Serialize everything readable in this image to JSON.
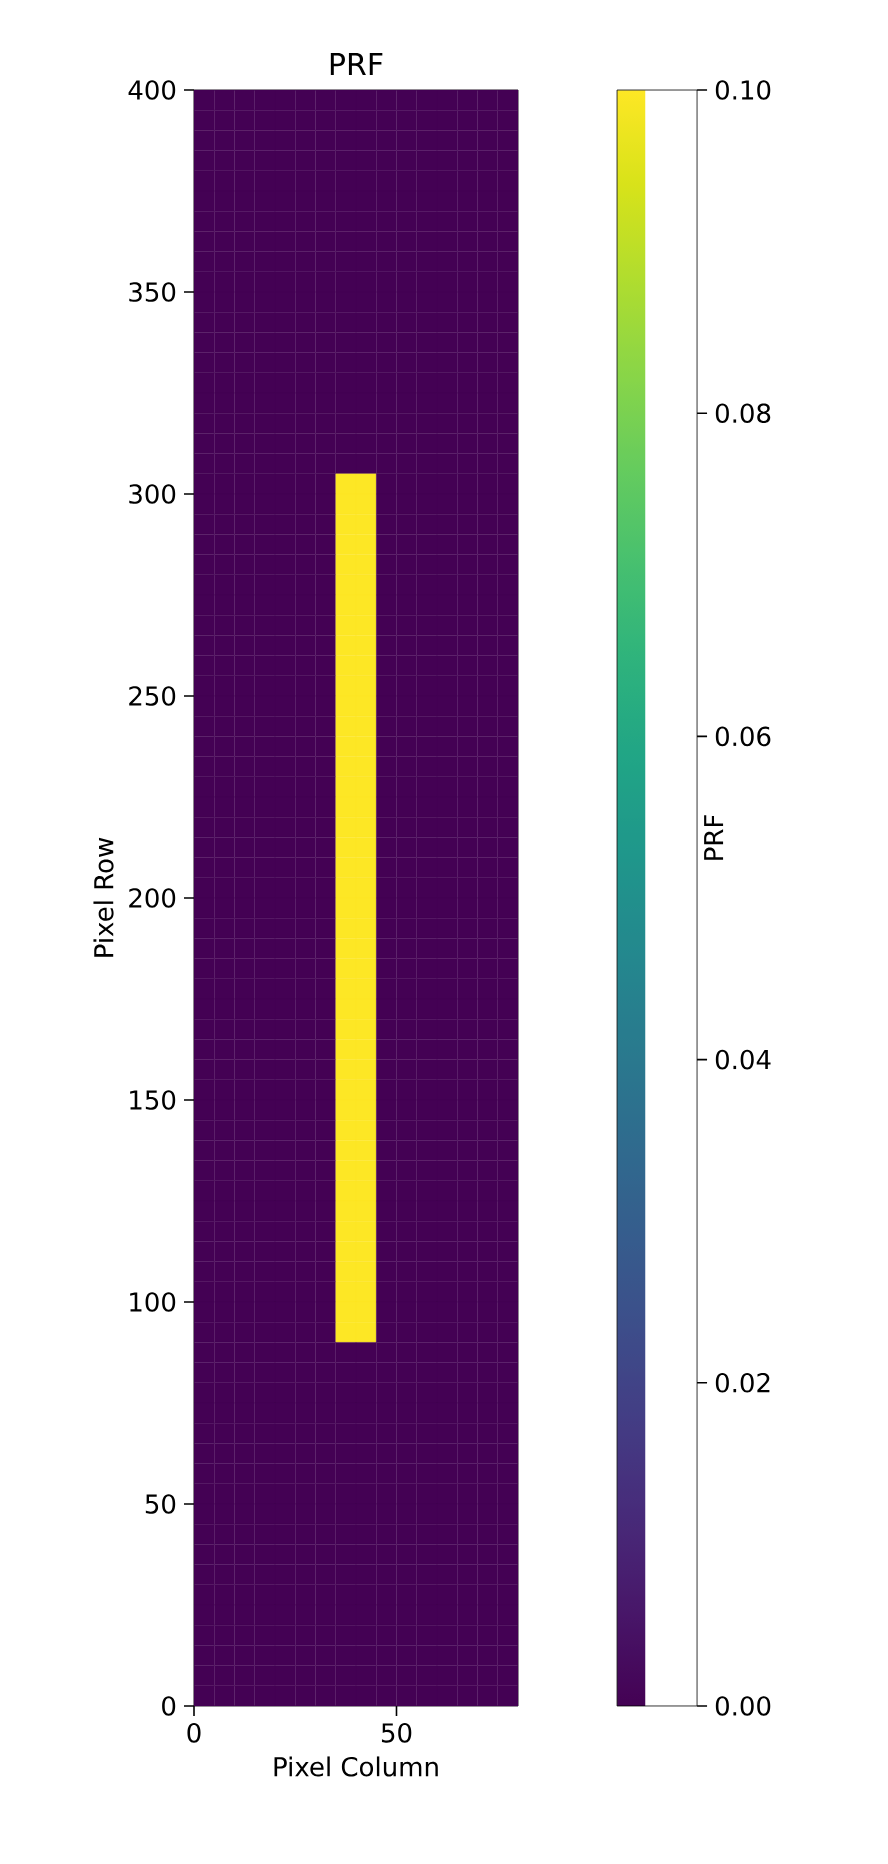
{
  "chart_data": {
    "type": "heatmap",
    "title": "PRF",
    "xlabel": "Pixel Column",
    "ylabel": "Pixel Row",
    "clabel": "PRF",
    "xlim": [
      0,
      80
    ],
    "ylim": [
      0,
      400
    ],
    "xticks": [
      0,
      50
    ],
    "yticks": [
      0,
      50,
      100,
      150,
      200,
      250,
      300,
      350,
      400
    ],
    "clim": [
      0,
      0.1
    ],
    "cticks": [
      {
        "value": 0,
        "label": "0.00"
      },
      {
        "value": 0.02,
        "label": "0.02"
      },
      {
        "value": 0.04,
        "label": "0.04"
      },
      {
        "value": 0.06,
        "label": "0.06"
      },
      {
        "value": 0.08,
        "label": "0.08"
      },
      {
        "value": 0.1,
        "label": "0.10"
      }
    ],
    "x": [
      2.5,
      7.5,
      12.5,
      17.5,
      22.5,
      27.5,
      32.5,
      37.5,
      42.5,
      47.5,
      52.5,
      57.5,
      62.5,
      67.5,
      72.5,
      77.5
    ],
    "y": [
      397.5,
      392.5,
      387.5,
      382.5,
      377.5,
      372.5,
      367.5,
      362.5,
      357.5,
      352.5,
      347.5,
      342.5,
      337.5,
      332.5,
      327.5,
      322.5,
      317.5,
      312.5,
      307.5,
      302.5,
      297.5,
      292.5,
      287.5,
      282.5,
      277.5,
      272.5,
      267.5,
      262.5,
      257.5,
      252.5,
      247.5,
      242.5,
      237.5,
      232.5,
      227.5,
      222.5,
      217.5,
      212.5,
      207.5,
      202.5,
      197.5,
      192.5,
      187.5,
      182.5,
      177.5,
      172.5,
      167.5,
      162.5,
      157.5,
      152.5,
      147.5,
      142.5,
      137.5,
      132.5,
      127.5,
      122.5,
      117.5,
      112.5,
      107.5,
      102.5,
      97.5,
      92.5,
      87.5,
      82.5,
      77.5,
      72.5,
      67.5,
      62.5,
      57.5,
      52.5,
      47.5,
      42.5,
      37.5,
      32.5,
      27.5,
      22.5,
      17.5,
      12.5,
      7.5,
      2.5
    ],
    "cells": [
      [
        0,
        0,
        0,
        0,
        0,
        0,
        0,
        0,
        0,
        0,
        0,
        0,
        0,
        0,
        0,
        0
      ],
      [
        0,
        0,
        0,
        0,
        0,
        0,
        0,
        0,
        0,
        0,
        0,
        0,
        0,
        0,
        0,
        0
      ],
      [
        0,
        0,
        0,
        0,
        0,
        0,
        0,
        0,
        0,
        0,
        0,
        0,
        0,
        0,
        0,
        0
      ],
      [
        0,
        0,
        0,
        0,
        0,
        0,
        0,
        0,
        0,
        0,
        0,
        0,
        0,
        0,
        0,
        0
      ],
      [
        0,
        0,
        0,
        0,
        0,
        0,
        0,
        0,
        0,
        0,
        0,
        0,
        0,
        0,
        0,
        0
      ],
      [
        0,
        0,
        0,
        0,
        0,
        0,
        0,
        0,
        0,
        0,
        0,
        0,
        0,
        0,
        0,
        0
      ],
      [
        0,
        0,
        0,
        0,
        0,
        0,
        0,
        0,
        0,
        0,
        0,
        0,
        0,
        0,
        0,
        0
      ],
      [
        0,
        0,
        0,
        0,
        0,
        0,
        0,
        0,
        0,
        0,
        0,
        0,
        0,
        0,
        0,
        0
      ],
      [
        0,
        0,
        0,
        0,
        0,
        0,
        0,
        0,
        0,
        0,
        0,
        0,
        0,
        0,
        0,
        0
      ],
      [
        0,
        0,
        0,
        0,
        0,
        0,
        0,
        0,
        0,
        0,
        0,
        0,
        0,
        0,
        0,
        0
      ],
      [
        0,
        0,
        0,
        0,
        0,
        0,
        0,
        0,
        0,
        0,
        0,
        0,
        0,
        0,
        0,
        0
      ],
      [
        0,
        0,
        0,
        0,
        0,
        0,
        0,
        0,
        0,
        0,
        0,
        0,
        0,
        0,
        0,
        0
      ],
      [
        0,
        0,
        0,
        0,
        0,
        0,
        0,
        0,
        0,
        0,
        0,
        0,
        0,
        0,
        0,
        0
      ],
      [
        0,
        0,
        0,
        0,
        0,
        0,
        0,
        0,
        0,
        0,
        0,
        0,
        0,
        0,
        0,
        0
      ],
      [
        0,
        0,
        0,
        0,
        0,
        0,
        0,
        0,
        0,
        0,
        0,
        0,
        0,
        0,
        0,
        0
      ],
      [
        0,
        0,
        0,
        0,
        0,
        0,
        0,
        0,
        0,
        0,
        0,
        0,
        0,
        0,
        0,
        0
      ],
      [
        0,
        0,
        0,
        0,
        0,
        0,
        0,
        0,
        0,
        0,
        0,
        0,
        0,
        0,
        0,
        0
      ],
      [
        0,
        0,
        0,
        0,
        0,
        0,
        0,
        0,
        0,
        0,
        0,
        0,
        0,
        0,
        0,
        0
      ],
      [
        0,
        0,
        0,
        0,
        0,
        0,
        0,
        0,
        0,
        0,
        0,
        0,
        0,
        0,
        0,
        0
      ],
      [
        0,
        0,
        0,
        0,
        0,
        0,
        0,
        0.1,
        0.1,
        0,
        0,
        0,
        0,
        0,
        0,
        0
      ],
      [
        0,
        0,
        0,
        0,
        0,
        0,
        0,
        0.1,
        0.1,
        0,
        0,
        0,
        0,
        0,
        0,
        0
      ],
      [
        0,
        0,
        0,
        0,
        0,
        0,
        0,
        0.1,
        0.1,
        0,
        0,
        0,
        0,
        0,
        0,
        0
      ],
      [
        0,
        0,
        0,
        0,
        0,
        0,
        0,
        0.1,
        0.1,
        0,
        0,
        0,
        0,
        0,
        0,
        0
      ],
      [
        0,
        0,
        0,
        0,
        0,
        0,
        0,
        0.1,
        0.1,
        0,
        0,
        0,
        0,
        0,
        0,
        0
      ],
      [
        0,
        0,
        0,
        0,
        0,
        0,
        0,
        0.1,
        0.1,
        0,
        0,
        0,
        0,
        0,
        0,
        0
      ],
      [
        0,
        0,
        0,
        0,
        0,
        0,
        0,
        0.1,
        0.1,
        0,
        0,
        0,
        0,
        0,
        0,
        0
      ],
      [
        0,
        0,
        0,
        0,
        0,
        0,
        0,
        0.1,
        0.1,
        0,
        0,
        0,
        0,
        0,
        0,
        0
      ],
      [
        0,
        0,
        0,
        0,
        0,
        0,
        0,
        0.1,
        0.1,
        0,
        0,
        0,
        0,
        0,
        0,
        0
      ],
      [
        0,
        0,
        0,
        0,
        0,
        0,
        0,
        0.1,
        0.1,
        0,
        0,
        0,
        0,
        0,
        0,
        0
      ],
      [
        0,
        0,
        0,
        0,
        0,
        0,
        0,
        0.1,
        0.1,
        0,
        0,
        0,
        0,
        0,
        0,
        0
      ],
      [
        0,
        0,
        0,
        0,
        0,
        0,
        0,
        0.1,
        0.1,
        0,
        0,
        0,
        0,
        0,
        0,
        0
      ],
      [
        0,
        0,
        0,
        0,
        0,
        0,
        0,
        0.1,
        0.1,
        0,
        0,
        0,
        0,
        0,
        0,
        0
      ],
      [
        0,
        0,
        0,
        0,
        0,
        0,
        0,
        0.1,
        0.1,
        0,
        0,
        0,
        0,
        0,
        0,
        0
      ],
      [
        0,
        0,
        0,
        0,
        0,
        0,
        0,
        0.1,
        0.1,
        0,
        0,
        0,
        0,
        0,
        0,
        0
      ],
      [
        0,
        0,
        0,
        0,
        0,
        0,
        0,
        0.1,
        0.1,
        0,
        0,
        0,
        0,
        0,
        0,
        0
      ],
      [
        0,
        0,
        0,
        0,
        0,
        0,
        0,
        0.1,
        0.1,
        0,
        0,
        0,
        0,
        0,
        0,
        0
      ],
      [
        0,
        0,
        0,
        0,
        0,
        0,
        0,
        0.1,
        0.1,
        0,
        0,
        0,
        0,
        0,
        0,
        0
      ],
      [
        0,
        0,
        0,
        0,
        0,
        0,
        0,
        0.1,
        0.1,
        0,
        0,
        0,
        0,
        0,
        0,
        0
      ],
      [
        0,
        0,
        0,
        0,
        0,
        0,
        0,
        0.1,
        0.1,
        0,
        0,
        0,
        0,
        0,
        0,
        0
      ],
      [
        0,
        0,
        0,
        0,
        0,
        0,
        0,
        0.1,
        0.1,
        0,
        0,
        0,
        0,
        0,
        0,
        0
      ],
      [
        0,
        0,
        0,
        0,
        0,
        0,
        0,
        0.1,
        0.1,
        0,
        0,
        0,
        0,
        0,
        0,
        0
      ],
      [
        0,
        0,
        0,
        0,
        0,
        0,
        0,
        0.1,
        0.1,
        0,
        0,
        0,
        0,
        0,
        0,
        0
      ],
      [
        0,
        0,
        0,
        0,
        0,
        0,
        0,
        0.1,
        0.1,
        0,
        0,
        0,
        0,
        0,
        0,
        0
      ],
      [
        0,
        0,
        0,
        0,
        0,
        0,
        0,
        0.1,
        0.1,
        0,
        0,
        0,
        0,
        0,
        0,
        0
      ],
      [
        0,
        0,
        0,
        0,
        0,
        0,
        0,
        0.1,
        0.1,
        0,
        0,
        0,
        0,
        0,
        0,
        0
      ],
      [
        0,
        0,
        0,
        0,
        0,
        0,
        0,
        0.1,
        0.1,
        0,
        0,
        0,
        0,
        0,
        0,
        0
      ],
      [
        0,
        0,
        0,
        0,
        0,
        0,
        0,
        0.1,
        0.1,
        0,
        0,
        0,
        0,
        0,
        0,
        0
      ],
      [
        0,
        0,
        0,
        0,
        0,
        0,
        0,
        0.1,
        0.1,
        0,
        0,
        0,
        0,
        0,
        0,
        0
      ],
      [
        0,
        0,
        0,
        0,
        0,
        0,
        0,
        0.1,
        0.1,
        0,
        0,
        0,
        0,
        0,
        0,
        0
      ],
      [
        0,
        0,
        0,
        0,
        0,
        0,
        0,
        0.1,
        0.1,
        0,
        0,
        0,
        0,
        0,
        0,
        0
      ],
      [
        0,
        0,
        0,
        0,
        0,
        0,
        0,
        0.1,
        0.1,
        0,
        0,
        0,
        0,
        0,
        0,
        0
      ],
      [
        0,
        0,
        0,
        0,
        0,
        0,
        0,
        0.1,
        0.1,
        0,
        0,
        0,
        0,
        0,
        0,
        0
      ],
      [
        0,
        0,
        0,
        0,
        0,
        0,
        0,
        0.1,
        0.1,
        0,
        0,
        0,
        0,
        0,
        0,
        0
      ],
      [
        0,
        0,
        0,
        0,
        0,
        0,
        0,
        0.1,
        0.1,
        0,
        0,
        0,
        0,
        0,
        0,
        0
      ],
      [
        0,
        0,
        0,
        0,
        0,
        0,
        0,
        0.1,
        0.1,
        0,
        0,
        0,
        0,
        0,
        0,
        0
      ],
      [
        0,
        0,
        0,
        0,
        0,
        0,
        0,
        0.1,
        0.1,
        0,
        0,
        0,
        0,
        0,
        0,
        0
      ],
      [
        0,
        0,
        0,
        0,
        0,
        0,
        0,
        0.1,
        0.1,
        0,
        0,
        0,
        0,
        0,
        0,
        0
      ],
      [
        0,
        0,
        0,
        0,
        0,
        0,
        0,
        0.1,
        0.1,
        0,
        0,
        0,
        0,
        0,
        0,
        0
      ],
      [
        0,
        0,
        0,
        0,
        0,
        0,
        0,
        0.1,
        0.1,
        0,
        0,
        0,
        0,
        0,
        0,
        0
      ],
      [
        0,
        0,
        0,
        0,
        0,
        0,
        0,
        0.1,
        0.1,
        0,
        0,
        0,
        0,
        0,
        0,
        0
      ],
      [
        0,
        0,
        0,
        0,
        0,
        0,
        0,
        0.1,
        0.1,
        0,
        0,
        0,
        0,
        0,
        0,
        0
      ],
      [
        0,
        0,
        0,
        0,
        0,
        0,
        0,
        0.1,
        0.1,
        0,
        0,
        0,
        0,
        0,
        0,
        0
      ],
      [
        0,
        0,
        0,
        0,
        0,
        0,
        0,
        0,
        0,
        0,
        0,
        0,
        0,
        0,
        0,
        0
      ],
      [
        0,
        0,
        0,
        0,
        0,
        0,
        0,
        0,
        0,
        0,
        0,
        0,
        0,
        0,
        0,
        0
      ],
      [
        0,
        0,
        0,
        0,
        0,
        0,
        0,
        0,
        0,
        0,
        0,
        0,
        0,
        0,
        0,
        0
      ],
      [
        0,
        0,
        0,
        0,
        0,
        0,
        0,
        0,
        0,
        0,
        0,
        0,
        0,
        0,
        0,
        0
      ],
      [
        0,
        0,
        0,
        0,
        0,
        0,
        0,
        0,
        0,
        0,
        0,
        0,
        0,
        0,
        0,
        0
      ],
      [
        0,
        0,
        0,
        0,
        0,
        0,
        0,
        0,
        0,
        0,
        0,
        0,
        0,
        0,
        0,
        0
      ],
      [
        0,
        0,
        0,
        0,
        0,
        0,
        0,
        0,
        0,
        0,
        0,
        0,
        0,
        0,
        0,
        0
      ],
      [
        0,
        0,
        0,
        0,
        0,
        0,
        0,
        0,
        0,
        0,
        0,
        0,
        0,
        0,
        0,
        0
      ],
      [
        0,
        0,
        0,
        0,
        0,
        0,
        0,
        0,
        0,
        0,
        0,
        0,
        0,
        0,
        0,
        0
      ],
      [
        0,
        0,
        0,
        0,
        0,
        0,
        0,
        0,
        0,
        0,
        0,
        0,
        0,
        0,
        0,
        0
      ],
      [
        0,
        0,
        0,
        0,
        0,
        0,
        0,
        0,
        0,
        0,
        0,
        0,
        0,
        0,
        0,
        0
      ],
      [
        0,
        0,
        0,
        0,
        0,
        0,
        0,
        0,
        0,
        0,
        0,
        0,
        0,
        0,
        0,
        0
      ],
      [
        0,
        0,
        0,
        0,
        0,
        0,
        0,
        0,
        0,
        0,
        0,
        0,
        0,
        0,
        0,
        0
      ],
      [
        0,
        0,
        0,
        0,
        0,
        0,
        0,
        0,
        0,
        0,
        0,
        0,
        0,
        0,
        0,
        0
      ],
      [
        0,
        0,
        0,
        0,
        0,
        0,
        0,
        0,
        0,
        0,
        0,
        0,
        0,
        0,
        0,
        0
      ],
      [
        0,
        0,
        0,
        0,
        0,
        0,
        0,
        0,
        0,
        0,
        0,
        0,
        0,
        0,
        0,
        0
      ],
      [
        0,
        0,
        0,
        0,
        0,
        0,
        0,
        0,
        0,
        0,
        0,
        0,
        0,
        0,
        0,
        0
      ],
      [
        0,
        0,
        0,
        0,
        0,
        0,
        0,
        0,
        0,
        0,
        0,
        0,
        0,
        0,
        0,
        0
      ]
    ]
  }
}
